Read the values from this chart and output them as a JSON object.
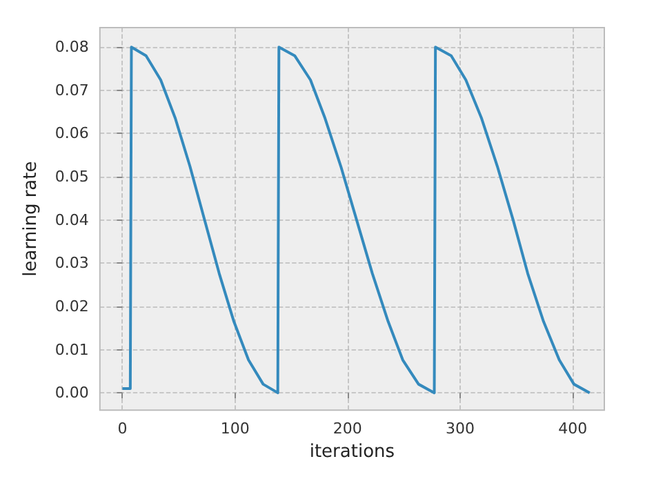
{
  "chart_data": {
    "type": "line",
    "xlabel": "iterations",
    "ylabel": "learning rate",
    "x": [
      0,
      7,
      8,
      21,
      34,
      47,
      60,
      73,
      86,
      99,
      112,
      125,
      138,
      139,
      153,
      167,
      180,
      194,
      208,
      222,
      236,
      249,
      263,
      277,
      278,
      292,
      305,
      319,
      333,
      347,
      360,
      374,
      388,
      401,
      415
    ],
    "series": [
      {
        "color": "#348abd",
        "values": [
          0.001,
          0.001,
          0.08,
          0.078,
          0.0724,
          0.0635,
          0.0524,
          0.04,
          0.0276,
          0.0165,
          0.0076,
          0.002,
          0,
          0.08,
          0.078,
          0.0724,
          0.0635,
          0.0524,
          0.04,
          0.0276,
          0.0165,
          0.0076,
          0.002,
          0,
          0.08,
          0.078,
          0.0724,
          0.0635,
          0.0524,
          0.04,
          0.0276,
          0.0165,
          0.0076,
          0.002,
          0
        ]
      }
    ],
    "xlim": [
      -20,
      428
    ],
    "xticks": [
      0,
      100,
      200,
      300,
      400
    ],
    "ylim": [
      -0.004,
      0.0845
    ],
    "yticks": [
      {
        "value": 0,
        "label": "0.00"
      },
      0.01,
      0.02,
      0.03,
      0.04,
      0.05,
      0.06,
      0.07,
      0.08
    ],
    "grid": true,
    "marker": "none",
    "line_style": "solid"
  }
}
